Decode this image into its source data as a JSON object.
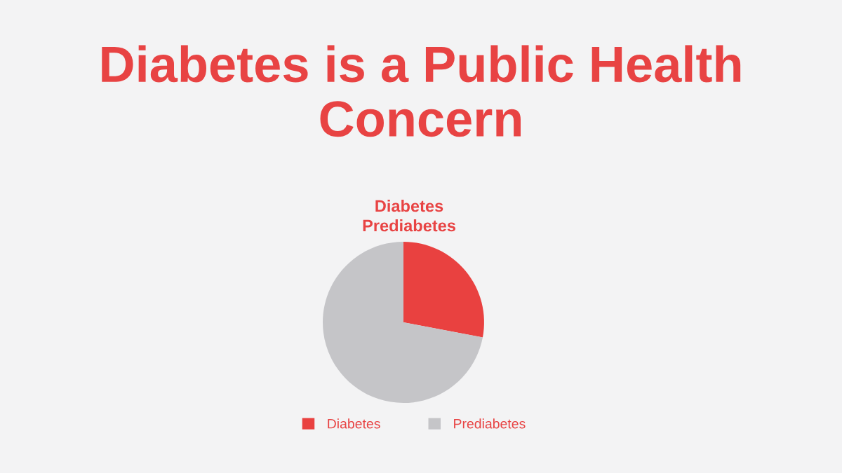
{
  "chart_data": {
    "type": "pie",
    "title": "Diabetes is a Public Health Concern",
    "subtitle": "Diabetes\nPrediabetes",
    "categories": [
      "Diabetes",
      "Prediabetes"
    ],
    "values": [
      28,
      72
    ],
    "colors": [
      "#e94140",
      "#c5c5c8"
    ],
    "legend": "bottom"
  }
}
